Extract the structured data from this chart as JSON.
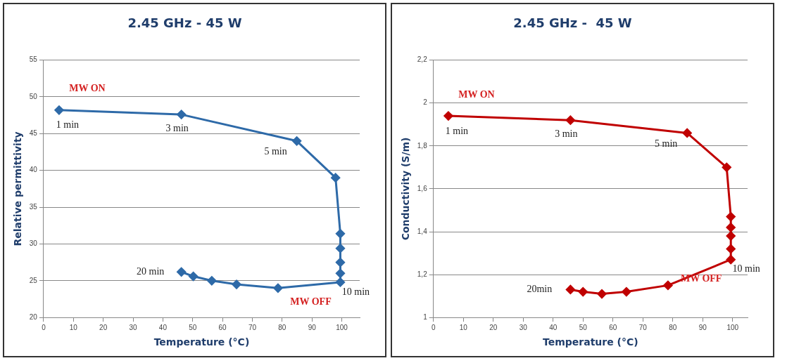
{
  "chart_data": [
    {
      "type": "line",
      "title": "2.45 GHz - 45 W",
      "xlabel": "Temperature (°C)",
      "ylabel": "Relative permittivity",
      "x": [
        5.2,
        46.2,
        84.9,
        97.9,
        99.5,
        99.5,
        99.5,
        99.5,
        99.5,
        78.6,
        64.7,
        56.4,
        50.2,
        46.2
      ],
      "series": [
        {
          "color": "#2e6aa8",
          "values": [
            48.2,
            47.6,
            44.0,
            39.0,
            31.4,
            29.4,
            27.5,
            26.0,
            24.8,
            24.0,
            24.5,
            25.0,
            25.6,
            26.2
          ]
        }
      ],
      "xlim": [
        0,
        106
      ],
      "xticks": [
        0,
        10,
        20,
        30,
        40,
        50,
        60,
        70,
        80,
        90,
        100
      ],
      "ylim": [
        20,
        55
      ],
      "yticks": [
        20,
        25,
        30,
        35,
        40,
        45,
        50,
        55
      ],
      "grid": "y",
      "legend": false,
      "marker": "diamond",
      "line_style": "solid",
      "annotations": [
        {
          "text": "MW ON",
          "x": 5.2,
          "y": 48.2
        },
        {
          "text": "1 min",
          "x": 5.2,
          "y": 48.2
        },
        {
          "text": "3 min",
          "x": 46.2,
          "y": 47.6
        },
        {
          "text": "5 min",
          "x": 84.9,
          "y": 44.0
        },
        {
          "text": "10 min",
          "x": 99.5,
          "y": 24.8
        },
        {
          "text": "MW OFF",
          "x": 99.5,
          "y": 24.8
        },
        {
          "text": "20 min",
          "x": 46.2,
          "y": 26.2
        }
      ]
    },
    {
      "type": "line",
      "title": "2.45 GHz -  45 W",
      "xlabel": "Temperature (°C)",
      "ylabel": "Conductivity (S/m)",
      "x": [
        5.0,
        45.8,
        84.8,
        98.0,
        99.4,
        99.4,
        99.4,
        99.4,
        99.4,
        78.4,
        64.5,
        56.3,
        50.0,
        45.8
      ],
      "series": [
        {
          "color": "#c00000",
          "values": [
            1.94,
            1.92,
            1.86,
            1.7,
            1.47,
            1.42,
            1.38,
            1.32,
            1.27,
            1.15,
            1.12,
            1.11,
            1.12,
            1.13
          ]
        }
      ],
      "xlim": [
        0,
        105
      ],
      "xticks": [
        0,
        10,
        20,
        30,
        40,
        50,
        60,
        70,
        80,
        90,
        100
      ],
      "ylim": [
        1,
        2.2
      ],
      "yticks": [
        1,
        {
          "value": 1.2,
          "label": "1,2"
        },
        {
          "value": 1.4,
          "label": "1,4"
        },
        {
          "value": 1.6,
          "label": "1,6"
        },
        {
          "value": 1.8,
          "label": "1,8"
        },
        2,
        {
          "value": 2.2,
          "label": "2,2"
        }
      ],
      "grid": "y",
      "legend": false,
      "marker": "diamond",
      "line_style": "solid",
      "annotations": [
        {
          "text": "MW ON",
          "x": 5.0,
          "y": 1.94
        },
        {
          "text": "1 min",
          "x": 5.0,
          "y": 1.94
        },
        {
          "text": "3 min",
          "x": 45.8,
          "y": 1.92
        },
        {
          "text": "5 min",
          "x": 84.8,
          "y": 1.86
        },
        {
          "text": "10 min",
          "x": 99.4,
          "y": 1.27
        },
        {
          "text": "MW OFF",
          "x": 99.4,
          "y": 1.27
        },
        {
          "text": "20min",
          "x": 45.8,
          "y": 1.13
        }
      ]
    }
  ]
}
